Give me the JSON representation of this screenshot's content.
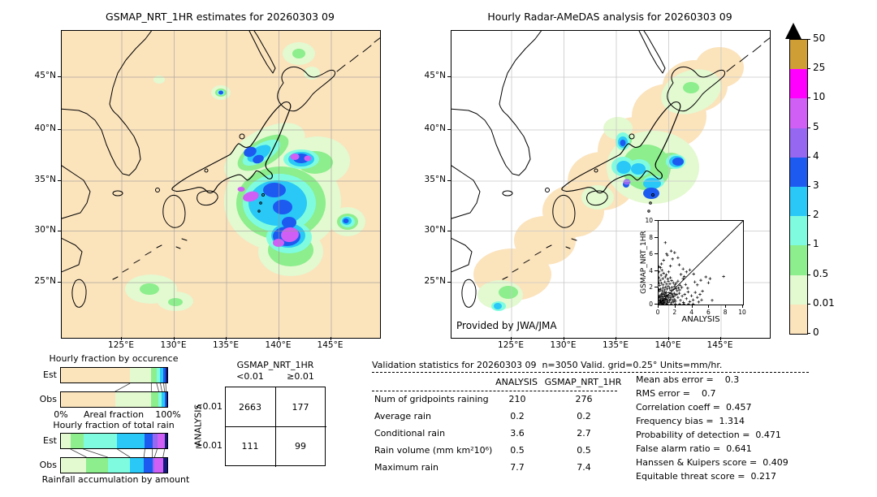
{
  "palette": {
    "peach": "#fbe3bc",
    "palegreen": "#e3f9d0",
    "green": "#8cee8c",
    "aqua": "#7ffce0",
    "cyan": "#29c8f7",
    "blue": "#1d5af0",
    "purple": "#9668f2",
    "orchid": "#d05ff5",
    "magenta": "#ff00ff",
    "ochre": "#cf9f35",
    "navy": "#131c7e",
    "overflow": "#000000",
    "grid_left": "#999999",
    "grid_right": "#cccccc"
  },
  "colorbar": {
    "labels": [
      "0",
      "0.01",
      "0.5",
      "1",
      "2",
      "3",
      "4",
      "5",
      "10",
      "25",
      "50"
    ],
    "colors": [
      "#fbe3bc",
      "#e3f9d0",
      "#8cee8c",
      "#7ffce0",
      "#29c8f7",
      "#1d5af0",
      "#9668f2",
      "#d05ff5",
      "#ff00ff",
      "#cf9f35"
    ],
    "overflow_color": "#000000"
  },
  "contingency": {
    "col_title": "GSMAP_NRT_1HR",
    "row_title": "ANALYSIS",
    "col_labels": [
      "<0.01",
      "≥0.01"
    ],
    "row_labels": [
      "<0.01",
      "≥0.01"
    ],
    "values": [
      [
        "2663",
        "177"
      ],
      [
        "111",
        "99"
      ]
    ]
  },
  "validation": {
    "title": "Validation statistics for 20260303 09  n=3050 Valid. grid=0.25° Units=mm/hr.",
    "col_headers": [
      "ANALYSIS",
      "GSMAP_NRT_1HR"
    ],
    "rows": [
      {
        "label": "Num of gridpoints raining",
        "analysis": "210",
        "gsmap": "276"
      },
      {
        "label": "Average rain",
        "analysis": "0.2",
        "gsmap": "0.2"
      },
      {
        "label": "Conditional rain",
        "analysis": "3.6",
        "gsmap": "2.7"
      },
      {
        "label": "Rain volume (mm km²10⁶)",
        "analysis": "0.5",
        "gsmap": "0.5"
      },
      {
        "label": "Maximum rain",
        "analysis": "7.7",
        "gsmap": "7.4"
      }
    ]
  },
  "scores": {
    "items": [
      {
        "label": "Mean abs error",
        "value": "0.3",
        "text": "Mean abs error =    0.3"
      },
      {
        "label": "RMS error",
        "value": "0.7",
        "text": "RMS error =    0.7"
      },
      {
        "label": "Correlation coeff",
        "value": "0.457",
        "text": "Correlation coeff =  0.457"
      },
      {
        "label": "Frequency bias",
        "value": "1.314",
        "text": "Frequency bias =  1.314"
      },
      {
        "label": "Probability of detection",
        "value": "0.471",
        "text": "Probability of detection =  0.471"
      },
      {
        "label": "False alarm ratio",
        "value": "0.641",
        "text": "False alarm ratio =  0.641"
      },
      {
        "label": "Hanssen & Kuipers score",
        "value": "0.409",
        "text": "Hanssen & Kuipers score =  0.409"
      },
      {
        "label": "Equitable threat score",
        "value": "0.217",
        "text": "Equitable threat score =  0.217"
      }
    ]
  },
  "chart_data": [
    {
      "id": "occurrence_fractions",
      "type": "bar",
      "orientation": "horizontal",
      "stacked": true,
      "title": "Hourly fraction by occurence",
      "xlabel": "Areal fraction",
      "x_end_labels": [
        "0%",
        "100%"
      ],
      "xlim": [
        0,
        100
      ],
      "categories": [
        "<0.01",
        "0.01-0.5",
        "0.5-1",
        "1-2",
        "2-3",
        "3-4",
        "≥4"
      ],
      "colors": [
        "#fbe3bc",
        "#e3f9d0",
        "#8cee8c",
        "#7ffce0",
        "#29c8f7",
        "#1d5af0",
        "#131c7e"
      ],
      "series": [
        {
          "name": "Est",
          "values": [
            65,
            20,
            5,
            3.5,
            3,
            2,
            1.5
          ]
        },
        {
          "name": "Obs",
          "values": [
            51,
            34,
            7,
            3,
            2.5,
            1.5,
            1
          ]
        }
      ]
    },
    {
      "id": "totalrain_fractions",
      "type": "bar",
      "orientation": "horizontal",
      "stacked": true,
      "title": "Hourly fraction of total rain",
      "caption": "Rainfall accumulation by amount",
      "xlim": [
        0,
        100
      ],
      "categories": [
        "0.01-0.5",
        "0.5-1",
        "1-2",
        "2-3",
        "3-4",
        "4-5",
        "5-10",
        "≥10"
      ],
      "colors": [
        "#e3f9d0",
        "#8cee8c",
        "#7ffce0",
        "#29c8f7",
        "#1d5af0",
        "#9668f2",
        "#d05ff5",
        "#131c7e"
      ],
      "series": [
        {
          "name": "Est",
          "values": [
            9,
            12,
            32,
            26,
            7,
            4.5,
            7,
            2.5
          ]
        },
        {
          "name": "Obs",
          "values": [
            24,
            20,
            21,
            13,
            8,
            2,
            8,
            4
          ]
        }
      ]
    },
    {
      "id": "inset_scatter",
      "type": "scatter",
      "xlabel": "ANALYSIS",
      "ylabel": "GSMAP_NRT_1HR",
      "xlim": [
        0,
        10
      ],
      "ylim": [
        0,
        10
      ],
      "ticks": [
        0,
        2,
        4,
        6,
        8,
        10
      ],
      "diagonal": true,
      "points": [
        [
          0.05,
          0.08
        ],
        [
          0.1,
          0.22
        ],
        [
          0.15,
          0.4
        ],
        [
          0.2,
          0.1
        ],
        [
          0.25,
          0.6
        ],
        [
          0.3,
          0.33
        ],
        [
          0.35,
          0.15
        ],
        [
          0.4,
          0.5
        ],
        [
          0.45,
          0.27
        ],
        [
          0.5,
          0.75
        ],
        [
          0.55,
          0.12
        ],
        [
          0.6,
          0.45
        ],
        [
          0.65,
          0.3
        ],
        [
          0.7,
          0.6
        ],
        [
          0.75,
          0.2
        ],
        [
          0.8,
          0.9
        ],
        [
          0.85,
          0.5
        ],
        [
          0.9,
          0.1
        ],
        [
          0.95,
          0.65
        ],
        [
          1.0,
          0.35
        ],
        [
          0.08,
          0.55
        ],
        [
          0.12,
          0.85
        ],
        [
          0.18,
          1.1
        ],
        [
          0.22,
          0.35
        ],
        [
          0.28,
          0.95
        ],
        [
          0.33,
          1.25
        ],
        [
          0.38,
          0.75
        ],
        [
          0.42,
          1.05
        ],
        [
          0.48,
          1.35
        ],
        [
          0.52,
          0.55
        ],
        [
          0.58,
          0.9
        ],
        [
          0.62,
          1.2
        ],
        [
          0.68,
          1.5
        ],
        [
          0.72,
          1.05
        ],
        [
          0.78,
          1.35
        ],
        [
          0.82,
          0.7
        ],
        [
          0.88,
          1.15
        ],
        [
          0.92,
          1.45
        ],
        [
          0.98,
          0.9
        ],
        [
          1.05,
          0.55
        ],
        [
          1.1,
          1.1
        ],
        [
          1.15,
          0.25
        ],
        [
          1.2,
          0.8
        ],
        [
          1.25,
          1.4
        ],
        [
          1.3,
          0.45
        ],
        [
          1.35,
          1.0
        ],
        [
          1.4,
          0.65
        ],
        [
          1.45,
          1.3
        ],
        [
          1.5,
          0.2
        ],
        [
          1.55,
          0.85
        ],
        [
          1.6,
          1.25
        ],
        [
          1.65,
          0.5
        ],
        [
          1.7,
          1.05
        ],
        [
          1.75,
          0.3
        ],
        [
          1.8,
          0.9
        ],
        [
          1.85,
          1.35
        ],
        [
          1.9,
          0.6
        ],
        [
          1.95,
          1.15
        ],
        [
          2.0,
          0.4
        ],
        [
          0.1,
          1.6
        ],
        [
          0.25,
          1.85
        ],
        [
          0.4,
          1.65
        ],
        [
          0.55,
          2.0
        ],
        [
          0.7,
          1.75
        ],
        [
          0.85,
          2.1
        ],
        [
          1.0,
          1.85
        ],
        [
          1.15,
          2.2
        ],
        [
          1.3,
          1.95
        ],
        [
          1.45,
          1.7
        ],
        [
          1.6,
          2.05
        ],
        [
          1.75,
          1.8
        ],
        [
          1.9,
          2.15
        ],
        [
          2.05,
          1.9
        ],
        [
          2.2,
          1.65
        ],
        [
          2.35,
          2.0
        ],
        [
          2.5,
          1.75
        ],
        [
          2.15,
          1.2
        ],
        [
          2.3,
          0.85
        ],
        [
          2.45,
          1.35
        ],
        [
          0.15,
          2.3
        ],
        [
          0.35,
          2.55
        ],
        [
          0.55,
          2.35
        ],
        [
          0.75,
          2.7
        ],
        [
          0.95,
          2.45
        ],
        [
          1.15,
          2.75
        ],
        [
          1.35,
          2.5
        ],
        [
          1.55,
          2.85
        ],
        [
          1.75,
          2.6
        ],
        [
          1.95,
          2.4
        ],
        [
          0.2,
          2.9
        ],
        [
          0.5,
          3.1
        ],
        [
          0.8,
          3.3
        ],
        [
          1.1,
          3.05
        ],
        [
          1.4,
          3.2
        ],
        [
          0.3,
          3.5
        ],
        [
          0.6,
          3.75
        ],
        [
          0.9,
          3.55
        ],
        [
          1.2,
          3.9
        ],
        [
          0.4,
          4.1
        ],
        [
          2.1,
          2.55
        ],
        [
          2.3,
          2.8
        ],
        [
          2.55,
          2.3
        ],
        [
          2.75,
          2.05
        ],
        [
          2.6,
          0.5
        ],
        [
          2.8,
          1.0
        ],
        [
          2.95,
          0.25
        ],
        [
          3.1,
          1.2
        ],
        [
          3.3,
          0.7
        ],
        [
          3.5,
          1.5
        ],
        [
          3.7,
          0.35
        ],
        [
          3.9,
          1.05
        ],
        [
          4.1,
          0.55
        ],
        [
          4.35,
          1.45
        ],
        [
          4.6,
          0.85
        ],
        [
          4.9,
          1.2
        ],
        [
          3.2,
          2.4
        ],
        [
          3.45,
          1.95
        ],
        [
          2.9,
          3.1
        ],
        [
          3.05,
          3.35
        ],
        [
          0.03,
          0.9
        ],
        [
          0.04,
          1.8
        ],
        [
          0.05,
          2.6
        ],
        [
          0.03,
          3.2
        ],
        [
          0.06,
          3.9
        ],
        [
          0.04,
          4.5
        ],
        [
          0.5,
          0.04
        ],
        [
          1.0,
          0.05
        ],
        [
          1.5,
          0.03
        ],
        [
          2.0,
          0.06
        ],
        [
          2.5,
          0.04
        ],
        [
          3.0,
          0.05
        ],
        [
          3.55,
          0.04
        ],
        [
          4.1,
          0.06
        ],
        [
          4.75,
          0.3
        ],
        [
          5.1,
          0.55
        ],
        [
          0.8,
          7.4
        ],
        [
          1.5,
          6.4
        ],
        [
          1.9,
          6.2
        ],
        [
          1.05,
          5.9
        ],
        [
          2.3,
          5.6
        ],
        [
          0.6,
          5.3
        ],
        [
          0.35,
          4.85
        ],
        [
          1.4,
          4.6
        ],
        [
          2.9,
          4.25
        ],
        [
          3.3,
          3.9
        ],
        [
          7.7,
          3.35
        ],
        [
          5.6,
          3.3
        ],
        [
          6.1,
          3.1
        ],
        [
          5.9,
          2.6
        ],
        [
          4.6,
          2.35
        ],
        [
          5.2,
          1.6
        ],
        [
          6.35,
          0.5
        ],
        [
          5.0,
          2.9
        ],
        [
          4.15,
          3.65
        ],
        [
          3.7,
          4.15
        ],
        [
          0.95,
          6.05
        ],
        [
          1.65,
          5.45
        ],
        [
          0.25,
          4.4
        ],
        [
          2.65,
          3.6
        ],
        [
          4.3,
          2.7
        ],
        [
          2.45,
          4.75
        ]
      ]
    },
    {
      "id": "gsmap_map",
      "type": "heatmap",
      "title": "GSMAP_NRT_1HR estimates for 20260303 09",
      "x_ticks": [
        "125°E",
        "130°E",
        "135°E",
        "140°E",
        "145°E"
      ],
      "y_ticks": [
        "45°N",
        "40°N",
        "35°N",
        "30°N",
        "25°N"
      ],
      "units": "mm/hr",
      "levels": [
        0,
        0.01,
        0.5,
        1,
        2,
        3,
        4,
        5,
        10,
        25,
        50
      ]
    },
    {
      "id": "radar_amedas_map",
      "type": "heatmap",
      "title": "Hourly Radar-AMeDAS analysis for 20260303 09",
      "credit": "Provided by JWA/JMA",
      "x_ticks": [
        "125°E",
        "130°E",
        "135°E",
        "140°E",
        "145°E"
      ],
      "y_ticks": [
        "45°N",
        "40°N",
        "35°N",
        "30°N",
        "25°N"
      ],
      "units": "mm/hr",
      "levels": [
        0,
        0.01,
        0.5,
        1,
        2,
        3,
        4,
        5,
        10,
        25,
        50
      ]
    }
  ]
}
